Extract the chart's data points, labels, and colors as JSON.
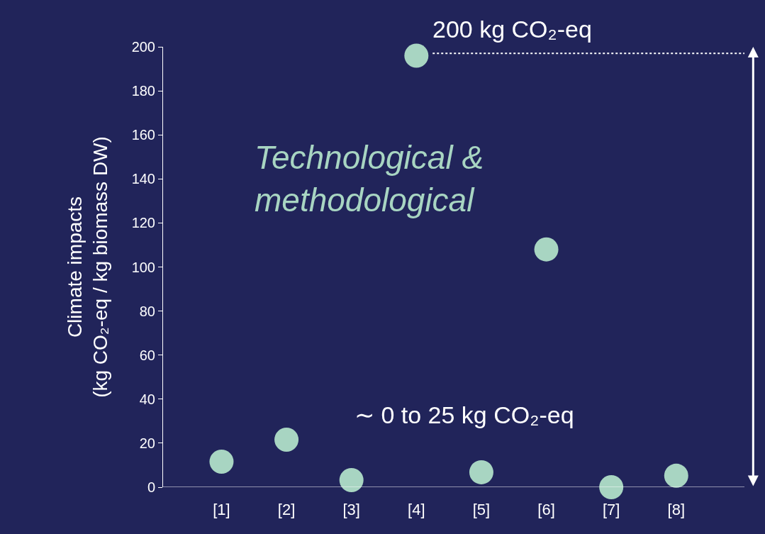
{
  "chart_data": {
    "type": "scatter",
    "ylabel": "Climate impacts\n(kg CO₂-eq / kg biomass DW)",
    "categories": [
      "[1]",
      "[2]",
      "[3]",
      "[4]",
      "[5]",
      "[6]",
      "[7]",
      "[8]"
    ],
    "values": [
      11.6,
      21.6,
      3.2,
      196,
      6.8,
      108,
      0,
      5.2
    ],
    "color": "#a8d5c2",
    "marker": "circle",
    "ylim": [
      0,
      200
    ],
    "yticks": [
      0,
      20,
      40,
      60,
      80,
      100,
      120,
      140,
      160,
      180,
      200
    ],
    "grid": false,
    "ref_lines": [
      {
        "axis": "y",
        "value": 197,
        "color": "#ffffff",
        "line_style": "dotted"
      }
    ],
    "annotations": [
      "200 kg CO₂-eq",
      "∼ 0 to 25 kg CO₂-eq",
      "Technological &\nmethodological"
    ]
  }
}
